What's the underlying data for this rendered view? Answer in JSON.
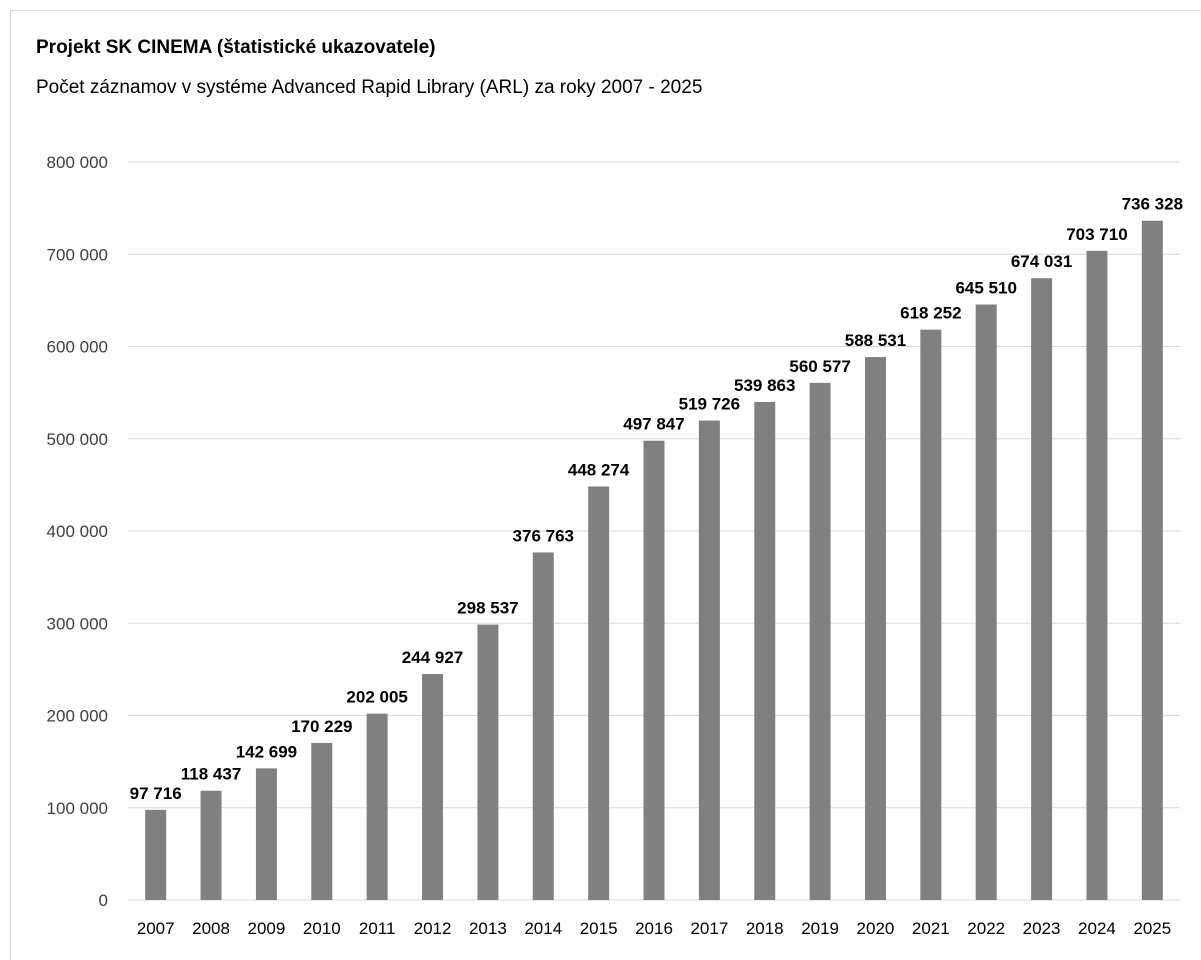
{
  "chart_data": {
    "type": "bar",
    "title": "Projekt SK CINEMA (štatistické ukazovatele)",
    "subtitle": "Počet záznamov v systéme Advanced Rapid Library (ARL) za roky 2007 - 2025",
    "xlabel": "",
    "ylabel": "",
    "categories": [
      "2007",
      "2008",
      "2009",
      "2010",
      "2011",
      "2012",
      "2013",
      "2014",
      "2015",
      "2016",
      "2017",
      "2018",
      "2019",
      "2020",
      "2021",
      "2022",
      "2023",
      "2024",
      "2025"
    ],
    "values": [
      97716,
      118437,
      142699,
      170229,
      202005,
      244927,
      298537,
      376763,
      448274,
      497847,
      519726,
      539863,
      560577,
      588531,
      618252,
      645510,
      674031,
      703710,
      736328
    ],
    "value_labels": [
      "97 716",
      "118 437",
      "142 699",
      "170 229",
      "202 005",
      "244 927",
      "298 537",
      "376 763",
      "448 274",
      "497 847",
      "519 726",
      "539 863",
      "560 577",
      "588 531",
      "618 252",
      "645 510",
      "674 031",
      "703 710",
      "736 328"
    ],
    "ylim": [
      0,
      800000
    ],
    "yticks": [
      0,
      100000,
      200000,
      300000,
      400000,
      500000,
      600000,
      700000,
      800000
    ],
    "ytick_labels": [
      "0",
      "100 000",
      "200 000",
      "300 000",
      "400 000",
      "500 000",
      "600 000",
      "700 000",
      "800 000"
    ],
    "grid": true,
    "legend": "none",
    "colors": {
      "bar": "#808080",
      "grid": "#d9d9d9",
      "axis_text": "#404040"
    }
  }
}
